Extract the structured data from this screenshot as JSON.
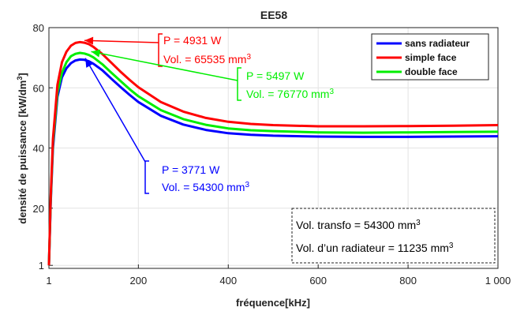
{
  "chart_data": {
    "type": "line",
    "title": "EE58",
    "xlabel": "fréquence[kHz]",
    "ylabel": "densité de puissance [kW/dm",
    "ylabel_sup": "3",
    "ylabel_end": "]",
    "xlim": [
      1,
      1000
    ],
    "ylim": [
      0,
      80
    ],
    "xticks": [
      1,
      200,
      400,
      600,
      800,
      1000
    ],
    "xtick_labels": [
      "1",
      "200",
      "400",
      "600",
      "800",
      "1 000"
    ],
    "yticks": [
      1,
      20,
      40,
      60,
      80
    ],
    "ytick_labels": [
      "1",
      "20",
      "40",
      "60",
      "80"
    ],
    "grid": true,
    "legend_position": "top-right",
    "x": [
      1,
      5,
      10,
      20,
      30,
      40,
      50,
      60,
      70,
      80,
      90,
      100,
      120,
      140,
      160,
      180,
      200,
      250,
      300,
      350,
      400,
      450,
      500,
      600,
      700,
      800,
      900,
      1000
    ],
    "series": [
      {
        "name": "sans radiateur",
        "color": "#0000ff",
        "values": [
          1,
          22,
          40,
          57,
          63.5,
          66.5,
          68.2,
          69.1,
          69.4,
          69.3,
          68.8,
          68.0,
          65.8,
          63.0,
          60.3,
          57.7,
          55.3,
          50.7,
          47.8,
          46.0,
          44.9,
          44.4,
          44.1,
          43.8,
          43.7,
          43.7,
          43.8,
          43.9
        ]
      },
      {
        "name": "simple face",
        "color": "#ff0000",
        "values": [
          1,
          24,
          43,
          61,
          68.5,
          72,
          74,
          74.9,
          75.2,
          75.0,
          74.5,
          73.6,
          71.2,
          68.3,
          65.4,
          62.7,
          60.2,
          55.3,
          52.1,
          50.0,
          48.7,
          48.0,
          47.6,
          47.2,
          47.2,
          47.3,
          47.4,
          47.6
        ]
      },
      {
        "name": "double face",
        "color": "#00ee00",
        "values": [
          1,
          23,
          41.5,
          58.5,
          65,
          68.5,
          70.5,
          71.3,
          71.6,
          71.4,
          70.9,
          70.1,
          67.8,
          65.0,
          62.3,
          59.6,
          57.2,
          52.6,
          49.6,
          47.7,
          46.5,
          45.9,
          45.6,
          45.2,
          45.1,
          45.2,
          45.3,
          45.4
        ]
      }
    ],
    "annotations": [
      {
        "color": "#ff0000",
        "line1": "P = 4931 W",
        "line2": "Vol. = 65535 mm",
        "sup": "3",
        "target_x": 80,
        "target_y": 75.2
      },
      {
        "color": "#00ee00",
        "line1": "P = 5497 W",
        "line2": "Vol. =  76770 mm",
        "sup": "3",
        "target_x": 95,
        "target_y": 71.5
      },
      {
        "color": "#0000ff",
        "line1": "P = 3771 W",
        "line2": "Vol. = 54300 mm",
        "sup": "3",
        "target_x": 82,
        "target_y": 69.3
      }
    ],
    "info_box": {
      "line1": "Vol. transfo = 54300 mm",
      "line1_sup": "3",
      "line2": "Vol. d’un radiateur = 11235 mm",
      "line2_sup": "3"
    }
  }
}
